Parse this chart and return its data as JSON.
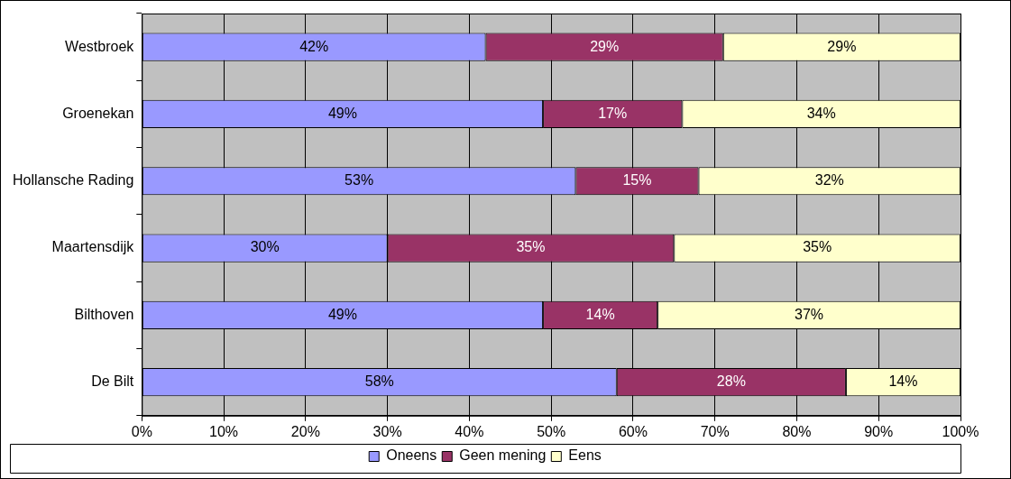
{
  "chart_data": {
    "type": "bar",
    "orientation": "horizontal",
    "stacked": true,
    "categories": [
      "Westbroek",
      "Groenekan",
      "Hollansche Rading",
      "Maartensdijk",
      "Bilthoven",
      "De Bilt"
    ],
    "series": [
      {
        "name": "Oneens",
        "color": "#9999ff",
        "values": [
          42,
          49,
          53,
          30,
          49,
          58
        ],
        "value_labels": [
          "42%",
          "49%",
          "53%",
          "30%",
          "49%",
          "58%"
        ]
      },
      {
        "name": "Geen mening",
        "color": "#993366",
        "values": [
          29,
          17,
          15,
          35,
          14,
          28
        ],
        "value_labels": [
          "29%",
          "17%",
          "15%",
          "35%",
          "14%",
          "28%"
        ]
      },
      {
        "name": "Eens",
        "color": "#ffffcc",
        "values": [
          29,
          34,
          32,
          35,
          37,
          14
        ],
        "value_labels": [
          "29%",
          "34%",
          "32%",
          "35%",
          "37%",
          "14%"
        ]
      }
    ],
    "xlim": [
      0,
      100
    ],
    "xticks": [
      {
        "value": 0,
        "label": "0%"
      },
      {
        "value": 10,
        "label": "10%"
      },
      {
        "value": 20,
        "label": "20%"
      },
      {
        "value": 30,
        "label": "30%"
      },
      {
        "value": 40,
        "label": "40%"
      },
      {
        "value": 50,
        "label": "50%"
      },
      {
        "value": 60,
        "label": "60%"
      },
      {
        "value": 70,
        "label": "70%"
      },
      {
        "value": 80,
        "label": "80%"
      },
      {
        "value": 90,
        "label": "90%"
      },
      {
        "value": 100,
        "label": "100%"
      }
    ],
    "grid": "x",
    "legend": "bottom"
  }
}
